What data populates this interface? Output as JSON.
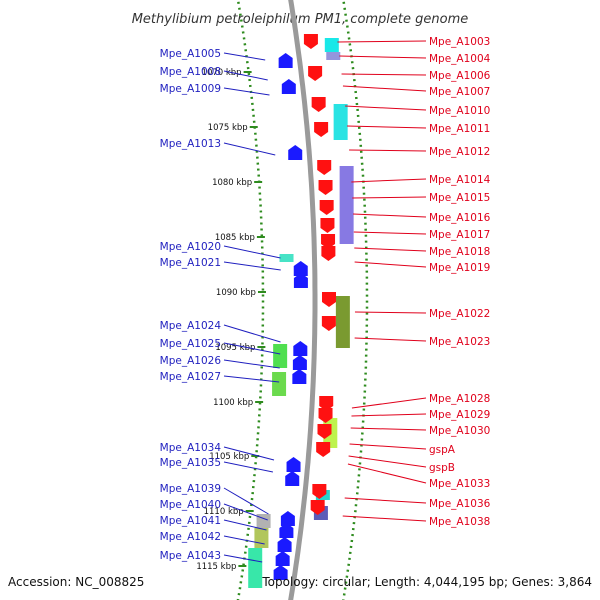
{
  "title": "Methylibium petroleiphilum PM1, complete genome",
  "footer": {
    "accession": "Accession: NC_008825",
    "summary": "Topology: circular; Length: 4,044,195 bp; Genes: 3,864"
  },
  "colors": {
    "reverse_strand_label": "#1f1fbf",
    "forward_strand_label": "#e0001b",
    "backbone": "#9a9a9a",
    "dotted_ring": "#2e8b1e",
    "reverse_gene": "#1a1aff",
    "forward_gene": "#ff1111"
  },
  "ticks": [
    "1070 kbp",
    "1075 kbp",
    "1080 kbp",
    "1085 kbp",
    "1090 kbp",
    "1095 kbp",
    "1100 kbp",
    "1105 kbp",
    "1110 kbp",
    "1115 kbp"
  ],
  "left_labels": [
    "Mpe_A1005",
    "Mpe_A1008",
    "Mpe_A1009",
    "Mpe_A1013",
    "Mpe_A1020",
    "Mpe_A1021",
    "Mpe_A1024",
    "Mpe_A1025",
    "Mpe_A1026",
    "Mpe_A1027",
    "Mpe_A1034",
    "Mpe_A1035",
    "Mpe_A1039",
    "Mpe_A1040",
    "Mpe_A1041",
    "Mpe_A1042",
    "Mpe_A1043"
  ],
  "right_labels": [
    "Mpe_A1003",
    "Mpe_A1004",
    "Mpe_A1006",
    "Mpe_A1007",
    "Mpe_A1010",
    "Mpe_A1011",
    "Mpe_A1012",
    "Mpe_A1014",
    "Mpe_A1015",
    "Mpe_A1016",
    "Mpe_A1017",
    "Mpe_A1018",
    "Mpe_A1019",
    "Mpe_A1022",
    "Mpe_A1023",
    "Mpe_A1028",
    "Mpe_A1029",
    "Mpe_A1030",
    "gspA",
    "gspB",
    "Mpe_A1033",
    "Mpe_A1036",
    "Mpe_A1038"
  ]
}
